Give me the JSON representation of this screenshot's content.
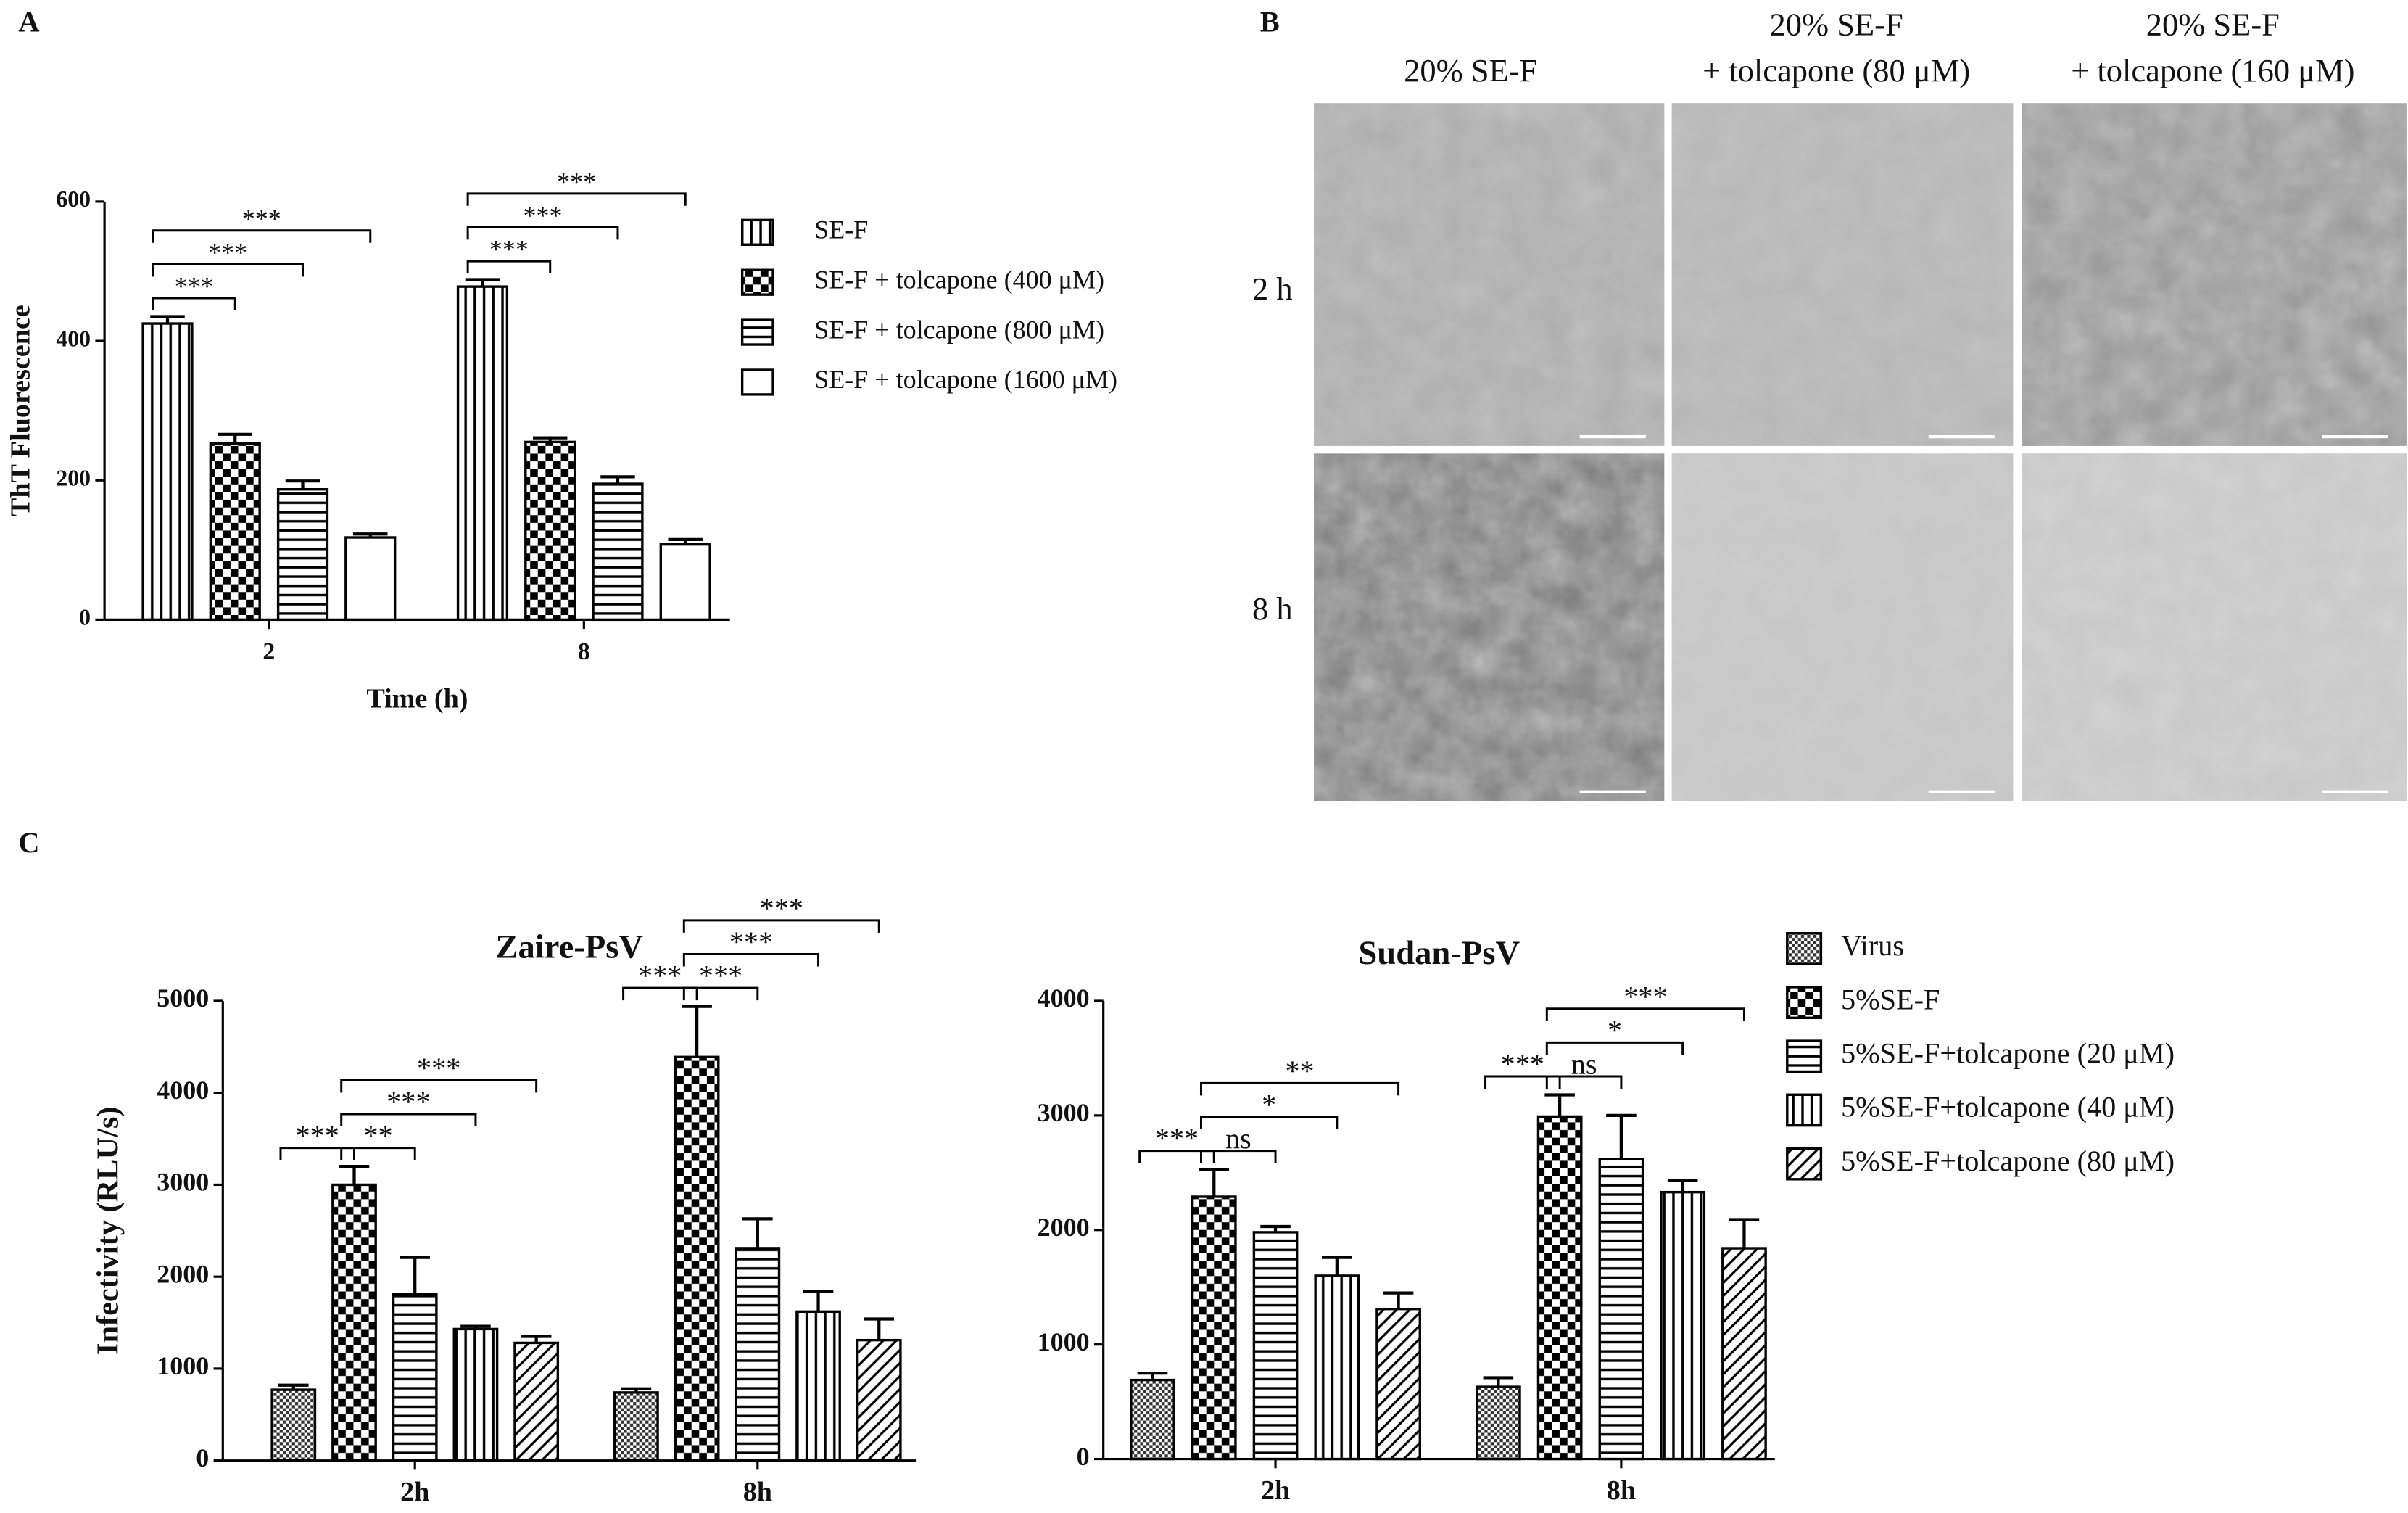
{
  "panels": {
    "labels": [
      "A",
      "B",
      "C"
    ]
  },
  "micrographs": {
    "columns": [
      [
        "20% SE-F"
      ],
      [
        "20% SE-F",
        "+ tolcapone  (80 μM)"
      ],
      [
        "20% SE-F",
        "+ tolcapone  (160 μM)"
      ]
    ],
    "rows": [
      "2 h",
      "8 h"
    ]
  },
  "chart_data": [
    {
      "type": "bar",
      "ylabel": "ThT Fluorescence",
      "xlabel": "Time (h)",
      "categories": [
        "2",
        "8"
      ],
      "ylim": [
        0,
        600
      ],
      "yticks": [
        0,
        200,
        400,
        600
      ],
      "legend": "right",
      "series": [
        {
          "name": "SE-F",
          "pattern": "vertical",
          "values": [
            425,
            478
          ],
          "errors": [
            10,
            10
          ]
        },
        {
          "name": "SE-F + tolcapone (400 μM)",
          "pattern": "checker",
          "values": [
            253,
            255
          ],
          "errors": [
            13,
            6
          ]
        },
        {
          "name": "SE-F + tolcapone (800 μM)",
          "pattern": "horizontal",
          "values": [
            187,
            195
          ],
          "errors": [
            12,
            10
          ]
        },
        {
          "name": "SE-F + tolcapone (1600 μM)",
          "pattern": "none",
          "values": [
            118,
            108
          ],
          "errors": [
            5,
            7
          ]
        }
      ],
      "significance": [
        {
          "category": 0,
          "from": 0,
          "to": 1,
          "label": "***"
        },
        {
          "category": 0,
          "from": 0,
          "to": 2,
          "label": "***"
        },
        {
          "category": 0,
          "from": 0,
          "to": 3,
          "label": "***"
        },
        {
          "category": 1,
          "from": 0,
          "to": 1,
          "label": "***"
        },
        {
          "category": 1,
          "from": 0,
          "to": 2,
          "label": "***"
        },
        {
          "category": 1,
          "from": 0,
          "to": 3,
          "label": "***"
        }
      ]
    },
    {
      "type": "bar",
      "title": "Zaire-PsV",
      "ylabel": "Infectivity (RLU/s)",
      "categories": [
        "2h",
        "8h"
      ],
      "ylim": [
        0,
        5000
      ],
      "yticks": [
        0,
        1000,
        2000,
        3000,
        4000,
        5000
      ],
      "series": [
        {
          "pattern": "fine-checker",
          "values": [
            770,
            740
          ],
          "errors": [
            50,
            40
          ]
        },
        {
          "pattern": "checker",
          "values": [
            3000,
            4390
          ],
          "errors": [
            200,
            550
          ]
        },
        {
          "pattern": "horizontal",
          "values": [
            1810,
            2310
          ],
          "errors": [
            400,
            320
          ]
        },
        {
          "pattern": "vertical",
          "values": [
            1430,
            1620
          ],
          "errors": [
            30,
            220
          ]
        },
        {
          "pattern": "diagonal",
          "values": [
            1280,
            1310
          ],
          "errors": [
            70,
            230
          ]
        }
      ],
      "significance": [
        {
          "category": 0,
          "from": 0,
          "to": 1,
          "label": "***"
        },
        {
          "category": 0,
          "from": 1,
          "to": 2,
          "label": "**"
        },
        {
          "category": 0,
          "from": 1,
          "to": 3,
          "label": "***"
        },
        {
          "category": 0,
          "from": 1,
          "to": 4,
          "label": "***"
        },
        {
          "category": 1,
          "from": 0,
          "to": 1,
          "label": "***"
        },
        {
          "category": 1,
          "from": 1,
          "to": 2,
          "label": "***"
        },
        {
          "category": 1,
          "from": 1,
          "to": 3,
          "label": "***"
        },
        {
          "category": 1,
          "from": 1,
          "to": 4,
          "label": "***"
        }
      ]
    },
    {
      "type": "bar",
      "title": "Sudan-PsV",
      "categories": [
        "2h",
        "8h"
      ],
      "ylim": [
        0,
        4000
      ],
      "yticks": [
        0,
        1000,
        2000,
        3000,
        4000
      ],
      "legend": "right",
      "series": [
        {
          "name": "Virus",
          "pattern": "fine-checker",
          "values": [
            690,
            630
          ],
          "errors": [
            60,
            80
          ]
        },
        {
          "name": "5%SE-F",
          "pattern": "checker",
          "values": [
            2290,
            2990
          ],
          "errors": [
            240,
            190
          ]
        },
        {
          "name": "5%SE-F+tolcapone (20 μM)",
          "pattern": "horizontal",
          "values": [
            1980,
            2620
          ],
          "errors": [
            50,
            380
          ]
        },
        {
          "name": "5%SE-F+tolcapone (40 μM)",
          "pattern": "vertical",
          "values": [
            1600,
            2330
          ],
          "errors": [
            160,
            100
          ]
        },
        {
          "name": "5%SE-F+tolcapone (80 μM)",
          "pattern": "diagonal",
          "values": [
            1310,
            1840
          ],
          "errors": [
            140,
            250
          ]
        }
      ],
      "significance": [
        {
          "category": 0,
          "from": 0,
          "to": 1,
          "label": "***"
        },
        {
          "category": 0,
          "from": 1,
          "to": 2,
          "label": "ns"
        },
        {
          "category": 0,
          "from": 1,
          "to": 3,
          "label": "*"
        },
        {
          "category": 0,
          "from": 1,
          "to": 4,
          "label": "**"
        },
        {
          "category": 1,
          "from": 0,
          "to": 1,
          "label": "***"
        },
        {
          "category": 1,
          "from": 1,
          "to": 2,
          "label": "ns"
        },
        {
          "category": 1,
          "from": 1,
          "to": 3,
          "label": "*"
        },
        {
          "category": 1,
          "from": 1,
          "to": 4,
          "label": "***"
        }
      ]
    }
  ]
}
